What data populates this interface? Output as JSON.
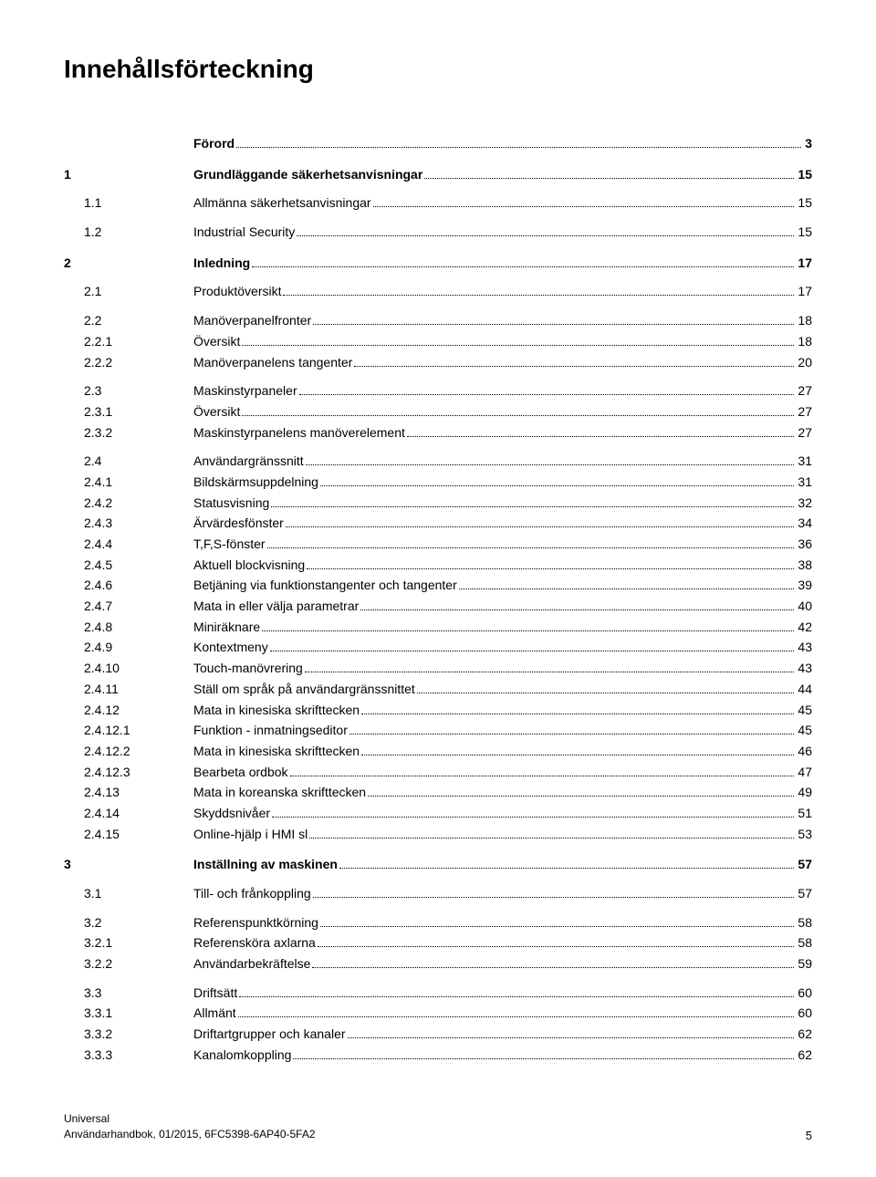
{
  "page_title": "Innehållsförteckning",
  "toc": [
    {
      "chapter": "",
      "num": "",
      "title": "Förord",
      "page": "3",
      "bold": true,
      "spacing": ""
    },
    {
      "chapter": "1",
      "num": "",
      "title": "Grundläggande säkerhetsanvisningar",
      "page": "15",
      "bold": true,
      "spacing": "spaced"
    },
    {
      "chapter": "",
      "num": "1.1",
      "title": "Allmänna säkerhetsanvisningar",
      "page": "15",
      "bold": false,
      "spacing": "spaced-sm"
    },
    {
      "chapter": "",
      "num": "1.2",
      "title": "Industrial Security",
      "page": "15",
      "bold": false,
      "spacing": "spaced-sm"
    },
    {
      "chapter": "2",
      "num": "",
      "title": "Inledning",
      "page": "17",
      "bold": true,
      "spacing": "spaced"
    },
    {
      "chapter": "",
      "num": "2.1",
      "title": "Produktöversikt",
      "page": "17",
      "bold": false,
      "spacing": "spaced-sm"
    },
    {
      "chapter": "",
      "num": "2.2",
      "title": "Manöverpanelfronter",
      "page": "18",
      "bold": false,
      "spacing": "spaced-sm"
    },
    {
      "chapter": "",
      "num": "2.2.1",
      "title": "Översikt",
      "page": "18",
      "bold": false,
      "spacing": ""
    },
    {
      "chapter": "",
      "num": "2.2.2",
      "title": "Manöverpanelens tangenter",
      "page": "20",
      "bold": false,
      "spacing": ""
    },
    {
      "chapter": "",
      "num": "2.3",
      "title": "Maskinstyrpaneler",
      "page": "27",
      "bold": false,
      "spacing": "spaced-sm"
    },
    {
      "chapter": "",
      "num": "2.3.1",
      "title": "Översikt",
      "page": "27",
      "bold": false,
      "spacing": ""
    },
    {
      "chapter": "",
      "num": "2.3.2",
      "title": "Maskinstyrpanelens manöverelement",
      "page": "27",
      "bold": false,
      "spacing": ""
    },
    {
      "chapter": "",
      "num": "2.4",
      "title": "Användargränssnitt",
      "page": "31",
      "bold": false,
      "spacing": "spaced-sm"
    },
    {
      "chapter": "",
      "num": "2.4.1",
      "title": "Bildskärmsuppdelning",
      "page": "31",
      "bold": false,
      "spacing": ""
    },
    {
      "chapter": "",
      "num": "2.4.2",
      "title": "Statusvisning",
      "page": "32",
      "bold": false,
      "spacing": ""
    },
    {
      "chapter": "",
      "num": "2.4.3",
      "title": "Ärvärdesfönster",
      "page": "34",
      "bold": false,
      "spacing": ""
    },
    {
      "chapter": "",
      "num": "2.4.4",
      "title": "T,F,S-fönster",
      "page": "36",
      "bold": false,
      "spacing": ""
    },
    {
      "chapter": "",
      "num": "2.4.5",
      "title": "Aktuell blockvisning",
      "page": "38",
      "bold": false,
      "spacing": ""
    },
    {
      "chapter": "",
      "num": "2.4.6",
      "title": "Betjäning via funktionstangenter och tangenter",
      "page": "39",
      "bold": false,
      "spacing": ""
    },
    {
      "chapter": "",
      "num": "2.4.7",
      "title": "Mata in eller välja parametrar",
      "page": "40",
      "bold": false,
      "spacing": ""
    },
    {
      "chapter": "",
      "num": "2.4.8",
      "title": "Miniräknare",
      "page": "42",
      "bold": false,
      "spacing": ""
    },
    {
      "chapter": "",
      "num": "2.4.9",
      "title": "Kontextmeny",
      "page": "43",
      "bold": false,
      "spacing": ""
    },
    {
      "chapter": "",
      "num": "2.4.10",
      "title": "Touch-manövrering",
      "page": "43",
      "bold": false,
      "spacing": ""
    },
    {
      "chapter": "",
      "num": "2.4.11",
      "title": "Ställ om språk på användargränssnittet",
      "page": "44",
      "bold": false,
      "spacing": ""
    },
    {
      "chapter": "",
      "num": "2.4.12",
      "title": "Mata in kinesiska skrifttecken",
      "page": "45",
      "bold": false,
      "spacing": ""
    },
    {
      "chapter": "",
      "num": "2.4.12.1",
      "title": "Funktion - inmatningseditor",
      "page": "45",
      "bold": false,
      "spacing": ""
    },
    {
      "chapter": "",
      "num": "2.4.12.2",
      "title": "Mata in kinesiska skrifttecken",
      "page": "46",
      "bold": false,
      "spacing": ""
    },
    {
      "chapter": "",
      "num": "2.4.12.3",
      "title": "Bearbeta ordbok",
      "page": "47",
      "bold": false,
      "spacing": ""
    },
    {
      "chapter": "",
      "num": "2.4.13",
      "title": "Mata in koreanska skrifttecken",
      "page": "49",
      "bold": false,
      "spacing": ""
    },
    {
      "chapter": "",
      "num": "2.4.14",
      "title": "Skyddsnivåer",
      "page": "51",
      "bold": false,
      "spacing": ""
    },
    {
      "chapter": "",
      "num": "2.4.15",
      "title": "Online-hjälp i HMI sl",
      "page": "53",
      "bold": false,
      "spacing": ""
    },
    {
      "chapter": "3",
      "num": "",
      "title": "Inställning av maskinen",
      "page": "57",
      "bold": true,
      "spacing": "spaced"
    },
    {
      "chapter": "",
      "num": "3.1",
      "title": "Till- och frånkoppling",
      "page": "57",
      "bold": false,
      "spacing": "spaced-sm"
    },
    {
      "chapter": "",
      "num": "3.2",
      "title": "Referenspunktkörning",
      "page": "58",
      "bold": false,
      "spacing": "spaced-sm"
    },
    {
      "chapter": "",
      "num": "3.2.1",
      "title": "Referensköra axlarna",
      "page": "58",
      "bold": false,
      "spacing": ""
    },
    {
      "chapter": "",
      "num": "3.2.2",
      "title": "Användarbekräftelse",
      "page": "59",
      "bold": false,
      "spacing": ""
    },
    {
      "chapter": "",
      "num": "3.3",
      "title": "Driftsätt",
      "page": "60",
      "bold": false,
      "spacing": "spaced-sm"
    },
    {
      "chapter": "",
      "num": "3.3.1",
      "title": "Allmänt",
      "page": "60",
      "bold": false,
      "spacing": ""
    },
    {
      "chapter": "",
      "num": "3.3.2",
      "title": "Driftartgrupper och kanaler",
      "page": "62",
      "bold": false,
      "spacing": ""
    },
    {
      "chapter": "",
      "num": "3.3.3",
      "title": "Kanalomkoppling",
      "page": "62",
      "bold": false,
      "spacing": ""
    }
  ],
  "footer": {
    "line1": "Universal",
    "line2": "Användarhandbok, 01/2015, 6FC5398-6AP40-5FA2",
    "page": "5"
  },
  "colors": {
    "background": "#ffffff",
    "text": "#000000"
  },
  "typography": {
    "title_fontsize": 28,
    "body_fontsize": 14,
    "footer_fontsize": 12
  }
}
